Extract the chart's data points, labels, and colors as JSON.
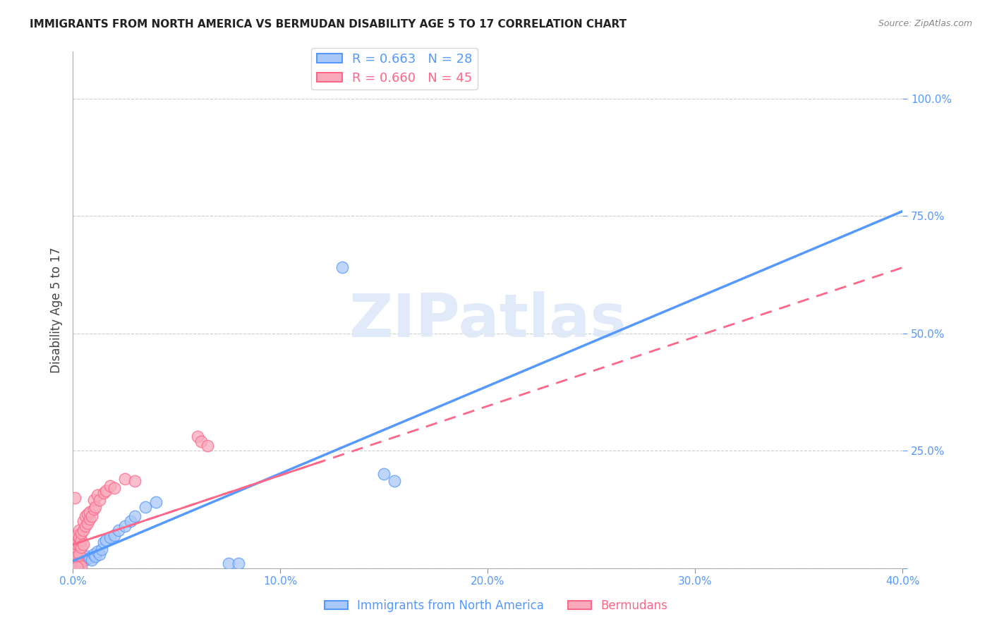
{
  "title": "IMMIGRANTS FROM NORTH AMERICA VS BERMUDAN DISABILITY AGE 5 TO 17 CORRELATION CHART",
  "source": "Source: ZipAtlas.com",
  "ylabel": "Disability Age 5 to 17",
  "xlim": [
    0.0,
    0.4
  ],
  "ylim": [
    0.0,
    1.1
  ],
  "xticks": [
    0.0,
    0.1,
    0.2,
    0.3,
    0.4
  ],
  "xtick_labels": [
    "0.0%",
    "10.0%",
    "20.0%",
    "30.0%",
    "40.0%"
  ],
  "yticks": [
    0.0,
    0.25,
    0.5,
    0.75,
    1.0
  ],
  "ytick_labels": [
    "",
    "25.0%",
    "50.0%",
    "75.0%",
    "100.0%"
  ],
  "legend_blue_r": "R = 0.663",
  "legend_blue_n": "N = 28",
  "legend_pink_r": "R = 0.660",
  "legend_pink_n": "N = 45",
  "blue_color": "#aac8f8",
  "pink_color": "#f8aabb",
  "blue_line_color": "#5599ff",
  "pink_line_color": "#ff6688",
  "blue_scatter": [
    [
      0.002,
      0.01
    ],
    [
      0.003,
      0.015
    ],
    [
      0.004,
      0.012
    ],
    [
      0.005,
      0.02
    ],
    [
      0.006,
      0.018
    ],
    [
      0.007,
      0.025
    ],
    [
      0.008,
      0.022
    ],
    [
      0.009,
      0.018
    ],
    [
      0.01,
      0.03
    ],
    [
      0.011,
      0.025
    ],
    [
      0.012,
      0.035
    ],
    [
      0.013,
      0.03
    ],
    [
      0.014,
      0.04
    ],
    [
      0.015,
      0.055
    ],
    [
      0.016,
      0.06
    ],
    [
      0.018,
      0.065
    ],
    [
      0.02,
      0.07
    ],
    [
      0.022,
      0.08
    ],
    [
      0.025,
      0.09
    ],
    [
      0.028,
      0.1
    ],
    [
      0.03,
      0.11
    ],
    [
      0.035,
      0.13
    ],
    [
      0.04,
      0.14
    ],
    [
      0.075,
      0.01
    ],
    [
      0.08,
      0.01
    ],
    [
      0.15,
      0.2
    ],
    [
      0.155,
      0.185
    ],
    [
      0.13,
      0.64
    ]
  ],
  "pink_scatter": [
    [
      0.001,
      0.02
    ],
    [
      0.001,
      0.035
    ],
    [
      0.001,
      0.045
    ],
    [
      0.002,
      0.015
    ],
    [
      0.002,
      0.025
    ],
    [
      0.002,
      0.05
    ],
    [
      0.002,
      0.06
    ],
    [
      0.002,
      0.07
    ],
    [
      0.003,
      0.03
    ],
    [
      0.003,
      0.05
    ],
    [
      0.003,
      0.065
    ],
    [
      0.003,
      0.08
    ],
    [
      0.004,
      0.045
    ],
    [
      0.004,
      0.06
    ],
    [
      0.004,
      0.075
    ],
    [
      0.005,
      0.05
    ],
    [
      0.005,
      0.08
    ],
    [
      0.005,
      0.1
    ],
    [
      0.006,
      0.09
    ],
    [
      0.006,
      0.11
    ],
    [
      0.007,
      0.095
    ],
    [
      0.007,
      0.115
    ],
    [
      0.008,
      0.105
    ],
    [
      0.008,
      0.12
    ],
    [
      0.009,
      0.11
    ],
    [
      0.01,
      0.125
    ],
    [
      0.01,
      0.145
    ],
    [
      0.011,
      0.13
    ],
    [
      0.012,
      0.155
    ],
    [
      0.013,
      0.145
    ],
    [
      0.015,
      0.16
    ],
    [
      0.016,
      0.165
    ],
    [
      0.018,
      0.175
    ],
    [
      0.02,
      0.17
    ],
    [
      0.025,
      0.19
    ],
    [
      0.03,
      0.185
    ],
    [
      0.001,
      0.15
    ],
    [
      0.002,
      0.01
    ],
    [
      0.003,
      0.008
    ],
    [
      0.06,
      0.28
    ],
    [
      0.062,
      0.27
    ],
    [
      0.065,
      0.26
    ],
    [
      0.001,
      0.005
    ],
    [
      0.004,
      0.004
    ],
    [
      0.002,
      0.003
    ]
  ],
  "watermark_text": "ZIPatlas",
  "background_color": "#ffffff",
  "grid_color": "#cccccc"
}
